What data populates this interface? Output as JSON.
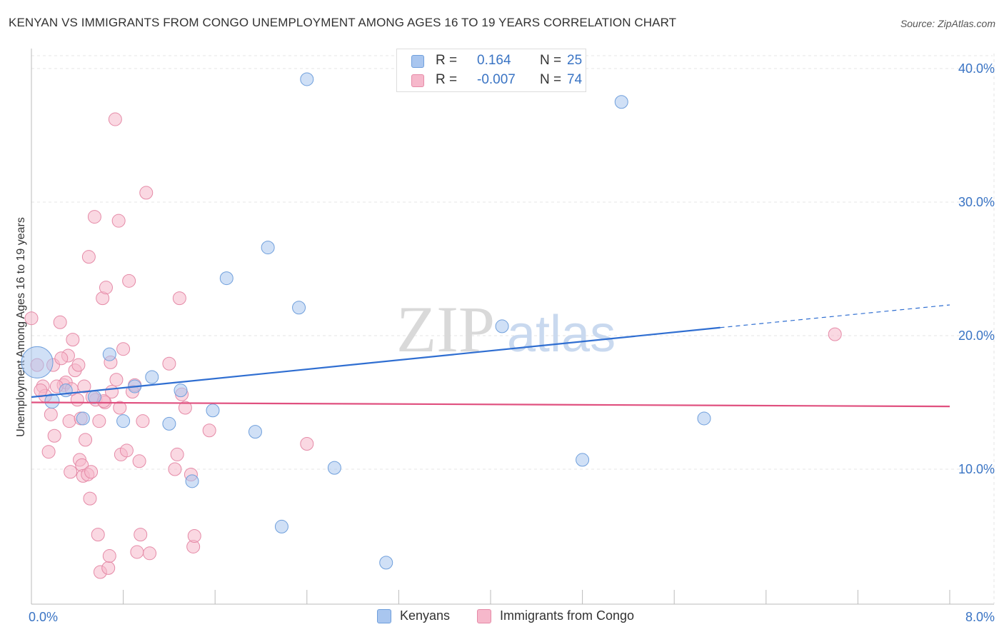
{
  "header": {
    "title": "KENYAN VS IMMIGRANTS FROM CONGO UNEMPLOYMENT AMONG AGES 16 TO 19 YEARS CORRELATION CHART",
    "source": "Source: ZipAtlas.com"
  },
  "watermark": {
    "zip": "ZIP",
    "atlas": "atlas"
  },
  "legend_top": {
    "rows": [
      {
        "r_label": "R =",
        "r_value": "0.164",
        "n_label": "N =",
        "n_value": "25",
        "color": "#a9c6ef"
      },
      {
        "r_label": "R =",
        "r_value": "-0.007",
        "n_label": "N =",
        "n_value": "74",
        "color": "#f6b8cb"
      }
    ]
  },
  "legend_bottom": {
    "items": [
      {
        "label": "Kenyans",
        "color": "#a9c6ef"
      },
      {
        "label": "Immigrants from Congo",
        "color": "#f6b8cb"
      }
    ]
  },
  "chart_data": {
    "type": "scatter",
    "title": "KENYAN VS IMMIGRANTS FROM CONGO UNEMPLOYMENT AMONG AGES 16 TO 19 YEARS CORRELATION CHART",
    "xlabel": "",
    "ylabel": "Unemployment Among Ages 16 to 19 years",
    "xlim": [
      0,
      8
    ],
    "ylim": [
      0,
      40
    ],
    "x_tick_labels": [
      "0.0%",
      "8.0%"
    ],
    "y_ticks": [
      10,
      20,
      30,
      40
    ],
    "y_tick_labels": [
      "10.0%",
      "20.0%",
      "30.0%",
      "40.0%"
    ],
    "grid": true,
    "legend_position": "top-center",
    "series": [
      {
        "name": "Kenyans",
        "color": "#a9c6ef",
        "stroke": "#6f9fdc",
        "line_color": "#2f6ed1",
        "trend": {
          "x0": 0.0,
          "y0": 15.4,
          "x1": 6.0,
          "y1": 20.6,
          "dash_to_x": 8.0,
          "dash_to_y": 22.3
        },
        "points": [
          [
            0.05,
            18.0
          ],
          [
            0.18,
            15.1
          ],
          [
            0.3,
            15.9
          ],
          [
            0.45,
            13.8
          ],
          [
            0.55,
            15.4
          ],
          [
            0.68,
            18.6
          ],
          [
            0.8,
            13.6
          ],
          [
            0.9,
            16.2
          ],
          [
            1.05,
            16.9
          ],
          [
            1.2,
            13.4
          ],
          [
            1.3,
            15.9
          ],
          [
            1.4,
            9.1
          ],
          [
            1.58,
            14.4
          ],
          [
            1.7,
            24.3
          ],
          [
            1.95,
            12.8
          ],
          [
            2.06,
            26.6
          ],
          [
            2.18,
            5.7
          ],
          [
            2.33,
            22.1
          ],
          [
            2.4,
            39.2
          ],
          [
            2.64,
            10.1
          ],
          [
            3.09,
            3.0
          ],
          [
            4.1,
            20.7
          ],
          [
            4.8,
            10.7
          ],
          [
            5.14,
            37.5
          ],
          [
            5.86,
            13.8
          ]
        ],
        "point_sizes": [
          22,
          10,
          9,
          9,
          9,
          9,
          9,
          9,
          9,
          9,
          9,
          9,
          9,
          9,
          9,
          9,
          9,
          9,
          9,
          9,
          9,
          9,
          9,
          9,
          9
        ]
      },
      {
        "name": "Immigrants from Congo",
        "color": "#f6b8cb",
        "stroke": "#e58aa7",
        "line_color": "#e0507f",
        "trend": {
          "x0": 0.0,
          "y0": 15.0,
          "x1": 8.0,
          "y1": 14.7
        },
        "points": [
          [
            0.0,
            21.3
          ],
          [
            0.05,
            17.8
          ],
          [
            0.1,
            16.2
          ],
          [
            0.12,
            15.5
          ],
          [
            0.15,
            11.3
          ],
          [
            0.17,
            14.1
          ],
          [
            0.19,
            17.8
          ],
          [
            0.2,
            12.5
          ],
          [
            0.25,
            21.0
          ],
          [
            0.28,
            16.3
          ],
          [
            0.3,
            16.5
          ],
          [
            0.32,
            18.5
          ],
          [
            0.33,
            13.6
          ],
          [
            0.34,
            9.8
          ],
          [
            0.36,
            19.7
          ],
          [
            0.38,
            17.4
          ],
          [
            0.4,
            15.2
          ],
          [
            0.41,
            17.8
          ],
          [
            0.42,
            10.7
          ],
          [
            0.44,
            10.3
          ],
          [
            0.45,
            9.5
          ],
          [
            0.46,
            16.2
          ],
          [
            0.47,
            12.2
          ],
          [
            0.49,
            9.6
          ],
          [
            0.5,
            25.9
          ],
          [
            0.51,
            7.8
          ],
          [
            0.52,
            9.8
          ],
          [
            0.55,
            28.9
          ],
          [
            0.56,
            15.2
          ],
          [
            0.58,
            5.1
          ],
          [
            0.6,
            2.3
          ],
          [
            0.62,
            22.8
          ],
          [
            0.64,
            15.0
          ],
          [
            0.65,
            23.6
          ],
          [
            0.67,
            2.6
          ],
          [
            0.68,
            3.5
          ],
          [
            0.69,
            18.0
          ],
          [
            0.7,
            15.8
          ],
          [
            0.73,
            36.2
          ],
          [
            0.74,
            16.7
          ],
          [
            0.76,
            28.6
          ],
          [
            0.77,
            14.6
          ],
          [
            0.78,
            11.1
          ],
          [
            0.8,
            19.0
          ],
          [
            0.83,
            11.4
          ],
          [
            0.85,
            24.1
          ],
          [
            0.88,
            15.8
          ],
          [
            0.9,
            16.3
          ],
          [
            0.92,
            3.8
          ],
          [
            0.94,
            10.6
          ],
          [
            0.95,
            5.1
          ],
          [
            0.97,
            13.6
          ],
          [
            1.0,
            30.7
          ],
          [
            1.03,
            3.7
          ],
          [
            1.2,
            17.9
          ],
          [
            1.25,
            10.0
          ],
          [
            1.27,
            11.1
          ],
          [
            1.29,
            22.8
          ],
          [
            1.31,
            15.6
          ],
          [
            1.34,
            14.6
          ],
          [
            1.39,
            9.6
          ],
          [
            1.41,
            4.2
          ],
          [
            1.42,
            5.0
          ],
          [
            1.55,
            12.9
          ],
          [
            2.4,
            11.9
          ],
          [
            7.0,
            20.1
          ],
          [
            0.08,
            15.9
          ],
          [
            0.22,
            16.2
          ],
          [
            0.26,
            18.3
          ],
          [
            0.35,
            16.0
          ],
          [
            0.43,
            13.8
          ],
          [
            0.53,
            15.4
          ],
          [
            0.59,
            13.6
          ],
          [
            0.63,
            15.1
          ]
        ]
      }
    ]
  }
}
